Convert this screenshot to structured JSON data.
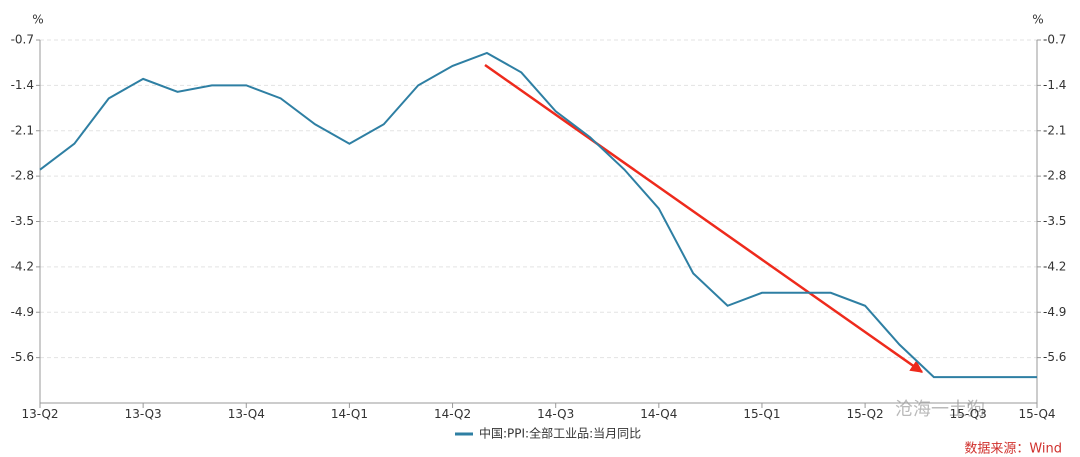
{
  "chart_data": {
    "type": "line",
    "y_unit": "%",
    "y2_unit": "%",
    "categories": [
      "13-Q2",
      null,
      null,
      "13-Q3",
      null,
      null,
      "13-Q4",
      null,
      null,
      "14-Q1",
      null,
      null,
      "14-Q2",
      null,
      null,
      "14-Q3",
      null,
      null,
      "14-Q4",
      null,
      null,
      "15-Q1",
      null,
      null,
      "15-Q2",
      null,
      null,
      "15-Q3",
      null,
      "15-Q4"
    ],
    "series": [
      {
        "name": "中国:PPI:全部工业品:当月同比",
        "color": "#2e7fa3",
        "values": [
          -2.7,
          -2.3,
          -1.6,
          -1.3,
          -1.5,
          -1.4,
          -1.4,
          -1.6,
          -2.0,
          -2.3,
          -2.0,
          -1.4,
          -1.1,
          -0.9,
          -1.2,
          -1.8,
          -2.2,
          -2.7,
          -3.3,
          -4.3,
          -4.8,
          -4.6,
          -4.6,
          -4.6,
          -4.8,
          -5.4,
          -5.9,
          -5.9,
          -5.9,
          -5.9
        ]
      }
    ],
    "ylim": [
      -6.3,
      -0.7
    ],
    "yticks": [
      -0.7,
      -1.4,
      -2.1,
      -2.8,
      -3.5,
      -4.2,
      -4.9,
      -5.6
    ],
    "y2lim": [
      -6.3,
      -0.7
    ],
    "y2ticks": [
      -0.7,
      -1.4,
      -2.1,
      -2.8,
      -3.5,
      -4.2,
      -4.9,
      -5.6
    ],
    "grid": true,
    "legend": "bottom",
    "source": "数据来源：Wind",
    "watermark": "沧海一土狗"
  }
}
